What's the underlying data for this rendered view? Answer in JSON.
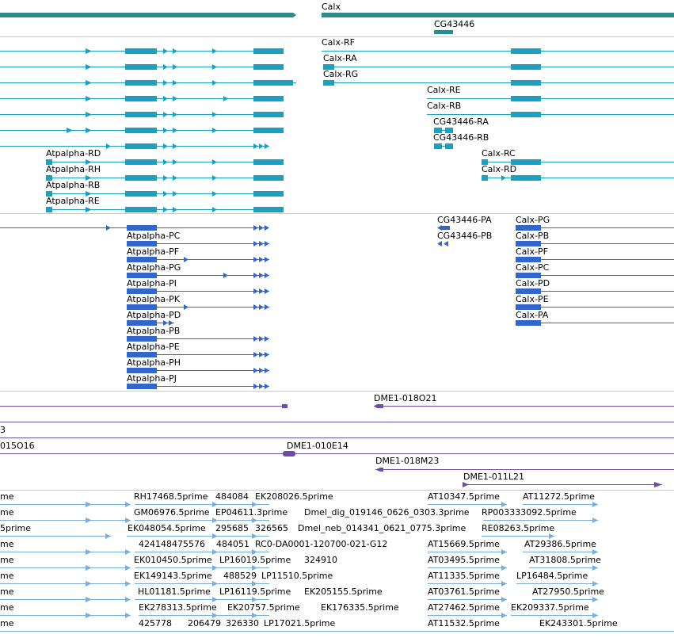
{
  "colors": {
    "gene": "#2e8b8b",
    "transcript": "#1aa0c0",
    "translation": "#3366cc",
    "clone": "#6a4fa3",
    "est": "#7aadd8",
    "divider": "#cccccc"
  },
  "genes": {
    "track": "gene",
    "labels": [
      "Calx",
      "CG43446"
    ]
  },
  "transcripts": {
    "track": "transcript",
    "labels": [
      "Calx-RF",
      "Calx-RA",
      "Calx-RG",
      "Calx-RE",
      "Calx-RB",
      "CG43446-RA",
      "CG43446-RB",
      "Atpalpha-RD",
      "Calx-RC",
      "Atpalpha-RH",
      "Calx-RD",
      "Atpalpha-RB",
      "Atpalpha-RE"
    ]
  },
  "translations": {
    "track": "translation",
    "labels": [
      "CG43446-PA",
      "Calx-PG",
      "CG43446-PB",
      "Calx-PB",
      "Atpalpha-PC",
      "Calx-PF",
      "Atpalpha-PF",
      "Calx-PC",
      "Atpalpha-PG",
      "Calx-PD",
      "Atpalpha-PI",
      "Calx-PE",
      "Atpalpha-PK",
      "Calx-PA",
      "Atpalpha-PD",
      "Atpalpha-PB",
      "Atpalpha-PE",
      "Atpalpha-PH",
      "Atpalpha-PJ"
    ]
  },
  "clones": {
    "track": "clone",
    "labels": [
      "DME1-018O21",
      "3",
      "015O16",
      "DME1-010E14",
      "DME1-018M23",
      "DME1-011L21"
    ]
  },
  "ests": {
    "track": "est",
    "labels": [
      "me",
      "RH17468.5prime",
      "484084",
      "EK208026.5prime",
      "AT10347.5prime",
      "AT11272.5prime",
      "me",
      "GM06976.5prime",
      "EP04611.3prime",
      "Dmel_dig_019146_0626_0303.3prime",
      "RP003333092.5prime",
      "5prime",
      "EK048054.5prime",
      "295685",
      "326565",
      "Dmel_neb_014341_0621_0775.3prime",
      "RE08263.5prime",
      "me",
      "424148475576",
      "484051",
      "RC0-DA0001-120700-021-G12",
      "AT15669.5prime",
      "AT29386.5prime",
      "me",
      "EK010450.5prime",
      "LP16019.5prime",
      "324910",
      "AT03495.5prime",
      "AT31808.5prime",
      "me",
      "EK149143.5prime",
      "488529",
      "LP11510.5prime",
      "AT11335.5prime",
      "LP16484.5prime",
      "me",
      "HL01181.5prime",
      "LP16119.5prime",
      "EK205155.5prime",
      "AT03761.5prime",
      "AT27950.5prime",
      "me",
      "EK278313.5prime",
      "EK20757.5prime",
      "EK176335.5prime",
      "AT27462.5prime",
      "EK209337.5prime",
      "me",
      "425778",
      "206479",
      "326330",
      "LP17021.5prime",
      "AT11532.5prime",
      "EK243301.5prime"
    ]
  }
}
